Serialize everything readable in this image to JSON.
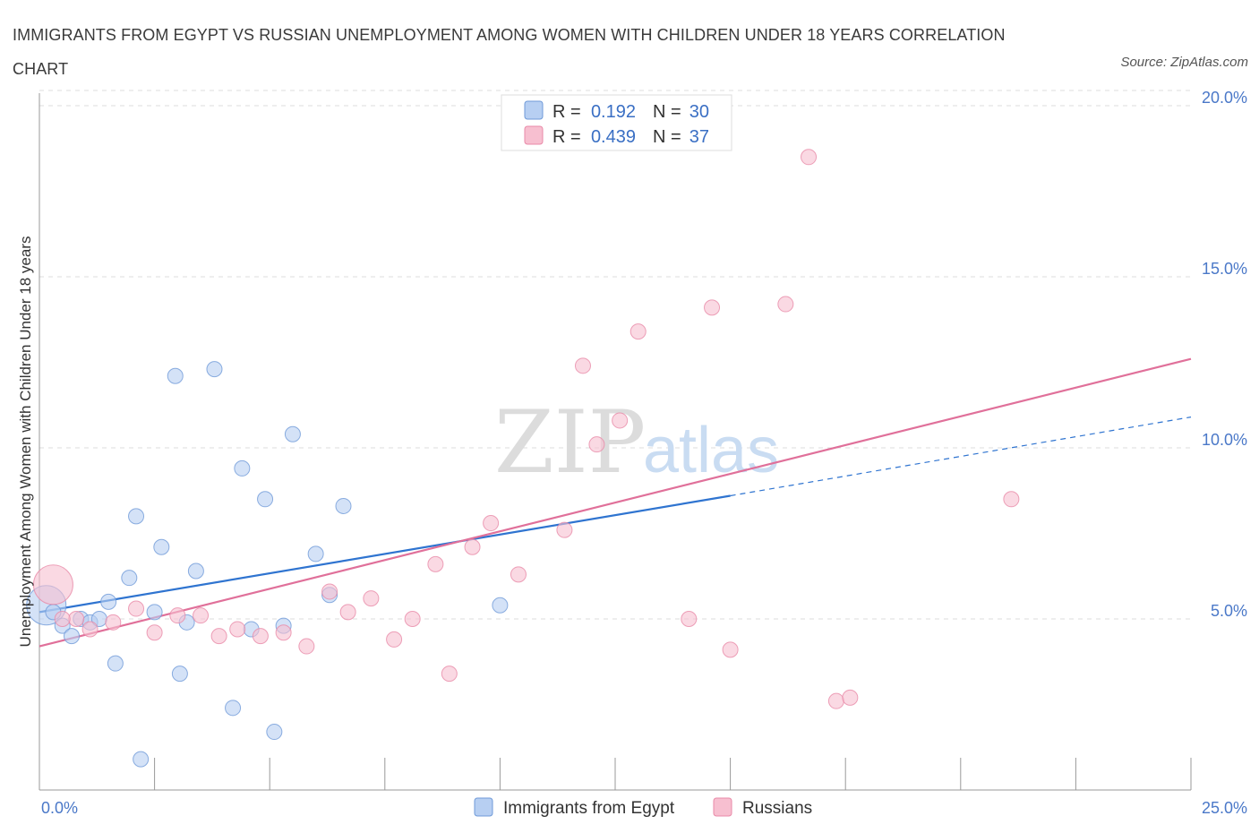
{
  "title": "IMMIGRANTS FROM EGYPT VS RUSSIAN UNEMPLOYMENT AMONG WOMEN WITH CHILDREN UNDER 18 YEARS CORRELATION CHART",
  "source": "Source: ZipAtlas.com",
  "watermark": {
    "part1": "ZIP",
    "part2": "atlas"
  },
  "colors": {
    "egypt_fill": "#b7cff2",
    "egypt_stroke": "#6f9ad8",
    "egypt_line": "#2f74d0",
    "russia_fill": "#f7bfd0",
    "russia_stroke": "#e98aa8",
    "russia_line": "#e0709a",
    "grid": "#dddddd",
    "tick_label": "#4a78c8"
  },
  "legend": {
    "row1": {
      "r_label": "R =",
      "r_value": "0.192",
      "n_label": "N =",
      "n_value": "30"
    },
    "row2": {
      "r_label": "R =",
      "r_value": "0.439",
      "n_label": "N =",
      "n_value": "37"
    }
  },
  "chart_data": {
    "type": "scatter",
    "title": "IMMIGRANTS FROM EGYPT VS RUSSIAN UNEMPLOYMENT AMONG WOMEN WITH CHILDREN UNDER 18 YEARS CORRELATION CHART",
    "xlabel": "",
    "ylabel": "Unemployment Among Women with Children Under 18 years",
    "xlim": [
      0,
      25
    ],
    "ylim": [
      0,
      20
    ],
    "x_tick_labels": [
      "0.0%",
      "25.0%"
    ],
    "y_ticks": [
      5,
      10,
      15,
      20
    ],
    "y_tick_labels": [
      "5.0%",
      "10.0%",
      "15.0%",
      "20.0%"
    ],
    "grid": true,
    "legend_placement": "top-center",
    "series": [
      {
        "name": "Immigrants from Egypt",
        "R": 0.192,
        "N": 30,
        "trend": {
          "x0": 0,
          "y0": 5.2,
          "x1": 15,
          "y1": 8.6,
          "dashed_to_x": 25,
          "dashed_to_y": 10.9
        },
        "points": [
          {
            "x": 0.15,
            "y": 5.4,
            "size": "large"
          },
          {
            "x": 0.3,
            "y": 5.2
          },
          {
            "x": 0.5,
            "y": 4.8
          },
          {
            "x": 0.7,
            "y": 4.5
          },
          {
            "x": 0.9,
            "y": 5.0
          },
          {
            "x": 1.1,
            "y": 4.9
          },
          {
            "x": 1.3,
            "y": 5.0
          },
          {
            "x": 1.5,
            "y": 5.5
          },
          {
            "x": 1.65,
            "y": 3.7
          },
          {
            "x": 1.95,
            "y": 6.2
          },
          {
            "x": 2.1,
            "y": 8.0
          },
          {
            "x": 2.2,
            "y": 0.9
          },
          {
            "x": 2.5,
            "y": 5.2
          },
          {
            "x": 2.65,
            "y": 7.1
          },
          {
            "x": 2.95,
            "y": 12.1
          },
          {
            "x": 3.05,
            "y": 3.4
          },
          {
            "x": 3.2,
            "y": 4.9
          },
          {
            "x": 3.4,
            "y": 6.4
          },
          {
            "x": 3.8,
            "y": 12.3
          },
          {
            "x": 4.2,
            "y": 2.4
          },
          {
            "x": 4.4,
            "y": 9.4
          },
          {
            "x": 4.6,
            "y": 4.7
          },
          {
            "x": 4.9,
            "y": 8.5
          },
          {
            "x": 5.1,
            "y": 1.7
          },
          {
            "x": 5.3,
            "y": 4.8
          },
          {
            "x": 5.5,
            "y": 10.4
          },
          {
            "x": 6.0,
            "y": 6.9
          },
          {
            "x": 6.3,
            "y": 5.7
          },
          {
            "x": 6.6,
            "y": 8.3
          },
          {
            "x": 10.0,
            "y": 5.4
          }
        ]
      },
      {
        "name": "Russians",
        "R": 0.439,
        "N": 37,
        "trend": {
          "x0": 0,
          "y0": 4.2,
          "x1": 25,
          "y1": 12.6
        },
        "points": [
          {
            "x": 0.3,
            "y": 6.0,
            "size": "large"
          },
          {
            "x": 0.8,
            "y": 5.0
          },
          {
            "x": 1.1,
            "y": 4.7
          },
          {
            "x": 1.6,
            "y": 4.9
          },
          {
            "x": 2.1,
            "y": 5.3
          },
          {
            "x": 2.5,
            "y": 4.6
          },
          {
            "x": 3.0,
            "y": 5.1
          },
          {
            "x": 3.5,
            "y": 5.1
          },
          {
            "x": 3.9,
            "y": 4.5
          },
          {
            "x": 4.3,
            "y": 4.7
          },
          {
            "x": 4.8,
            "y": 4.5
          },
          {
            "x": 5.3,
            "y": 4.6
          },
          {
            "x": 5.8,
            "y": 4.2
          },
          {
            "x": 6.3,
            "y": 5.8
          },
          {
            "x": 6.7,
            "y": 5.2
          },
          {
            "x": 7.2,
            "y": 5.6
          },
          {
            "x": 7.7,
            "y": 4.4
          },
          {
            "x": 8.1,
            "y": 5.0
          },
          {
            "x": 8.6,
            "y": 6.6
          },
          {
            "x": 8.9,
            "y": 3.4
          },
          {
            "x": 9.4,
            "y": 7.1
          },
          {
            "x": 9.8,
            "y": 7.8
          },
          {
            "x": 10.4,
            "y": 6.3
          },
          {
            "x": 11.4,
            "y": 7.6
          },
          {
            "x": 11.8,
            "y": 12.4
          },
          {
            "x": 12.1,
            "y": 10.1
          },
          {
            "x": 12.6,
            "y": 10.8
          },
          {
            "x": 13.0,
            "y": 13.4
          },
          {
            "x": 14.1,
            "y": 5.0
          },
          {
            "x": 14.6,
            "y": 14.1
          },
          {
            "x": 15.0,
            "y": 4.1
          },
          {
            "x": 16.2,
            "y": 14.2
          },
          {
            "x": 16.7,
            "y": 18.5
          },
          {
            "x": 17.3,
            "y": 2.6
          },
          {
            "x": 17.6,
            "y": 2.7
          },
          {
            "x": 21.1,
            "y": 8.5
          },
          {
            "x": 0.5,
            "y": 5.0
          }
        ]
      }
    ]
  }
}
